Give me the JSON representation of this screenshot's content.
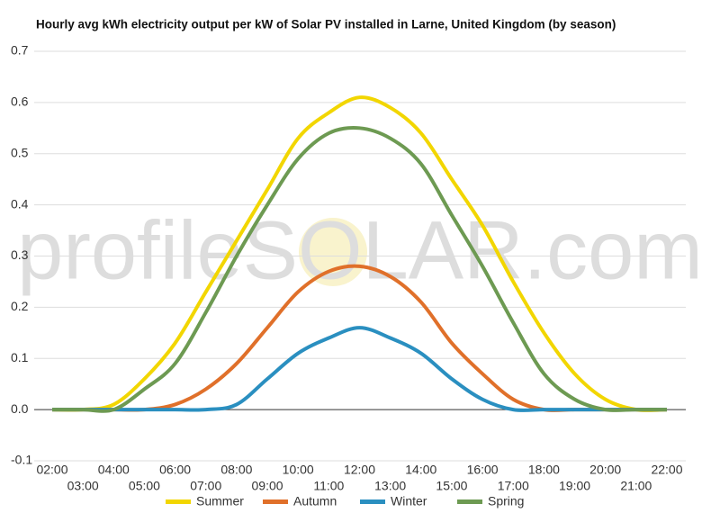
{
  "chart_data": {
    "type": "line",
    "title": "Hourly avg kWh electricity output per kW of Solar PV installed in Larne, United Kingdom (by season)",
    "watermark": "profileSOLAR.com",
    "categories": [
      "02:00",
      "03:00",
      "04:00",
      "05:00",
      "06:00",
      "07:00",
      "08:00",
      "09:00",
      "10:00",
      "11:00",
      "12:00",
      "13:00",
      "14:00",
      "15:00",
      "16:00",
      "17:00",
      "18:00",
      "19:00",
      "20:00",
      "21:00",
      "22:00"
    ],
    "series": [
      {
        "name": "Summer",
        "color": "#f2d600",
        "values": [
          0,
          0,
          0.01,
          0.06,
          0.13,
          0.23,
          0.33,
          0.43,
          0.53,
          0.58,
          0.61,
          0.59,
          0.54,
          0.45,
          0.36,
          0.25,
          0.15,
          0.07,
          0.02,
          0,
          0
        ]
      },
      {
        "name": "Autumn",
        "color": "#e0702a",
        "values": [
          0,
          0,
          0,
          0,
          0.01,
          0.04,
          0.09,
          0.16,
          0.23,
          0.27,
          0.28,
          0.26,
          0.21,
          0.13,
          0.07,
          0.02,
          0,
          0,
          0,
          0,
          0
        ]
      },
      {
        "name": "Winter",
        "color": "#2a8fc0",
        "values": [
          0,
          0,
          0,
          0,
          0,
          0,
          0.01,
          0.06,
          0.11,
          0.14,
          0.16,
          0.14,
          0.11,
          0.06,
          0.02,
          0,
          0,
          0,
          0,
          0,
          0
        ]
      },
      {
        "name": "Spring",
        "color": "#6d9a52",
        "values": [
          0,
          0,
          0,
          0.04,
          0.09,
          0.19,
          0.3,
          0.4,
          0.49,
          0.54,
          0.55,
          0.53,
          0.48,
          0.38,
          0.28,
          0.17,
          0.07,
          0.02,
          0,
          0,
          0
        ]
      }
    ],
    "ylim": [
      -0.1,
      0.7
    ],
    "yticks": [
      -0.1,
      {
        "value": 0,
        "label": "0.0"
      },
      0.1,
      0.2,
      0.3,
      0.4,
      0.5,
      0.6,
      0.7
    ],
    "grid": true,
    "legend": "bottom"
  }
}
